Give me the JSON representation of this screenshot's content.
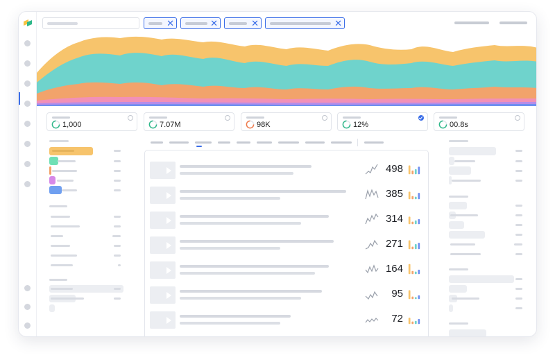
{
  "stats": [
    {
      "value": "1,000",
      "ring_color": "#2fb88a",
      "checked": false
    },
    {
      "value": "7.07M",
      "ring_color": "#2fb88a",
      "checked": false
    },
    {
      "value": "98K",
      "ring_color": "#f07a4a",
      "checked": false
    },
    {
      "value": "12%",
      "ring_color": "#2fb88a",
      "checked": true
    },
    {
      "value": "00.8s",
      "ring_color": "#2fb88a",
      "checked": false
    }
  ],
  "rows": [
    {
      "value": "498"
    },
    {
      "value": "385"
    },
    {
      "value": "314"
    },
    {
      "value": "271"
    },
    {
      "value": "164"
    },
    {
      "value": "95"
    },
    {
      "value": "72"
    }
  ],
  "colors": {
    "accent": "#3b6ee8",
    "area_yellow": "#f7c46c",
    "area_teal": "#6fd3cc",
    "area_orange": "#f2a36b",
    "area_pink": "#f290b7",
    "area_purple": "#b68ce8",
    "area_blue": "#6f8ff0"
  },
  "icons": {
    "filter_remove": "close-icon",
    "play": "play-icon"
  }
}
